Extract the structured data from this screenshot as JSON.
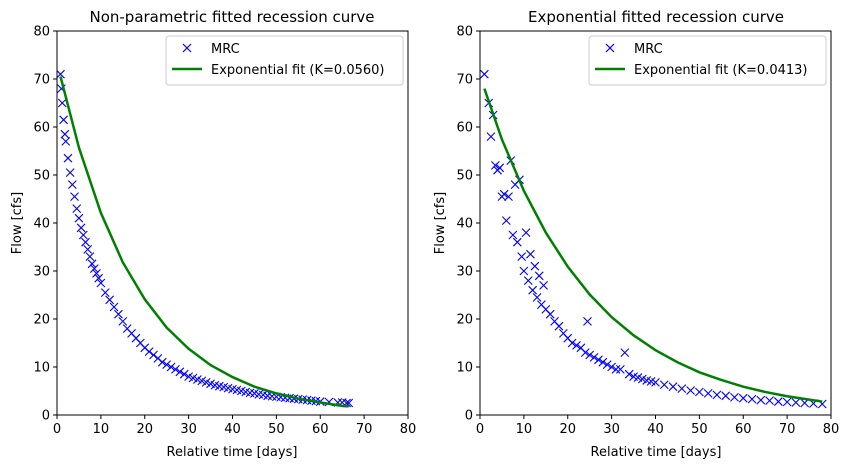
{
  "chart_data": [
    {
      "type": "scatter",
      "title": "Non-parametric fitted recession curve",
      "xlabel": "Relative time [days]",
      "ylabel": "Flow [cfs]",
      "xlim": [
        0,
        80
      ],
      "ylim": [
        0,
        80
      ],
      "xticks": [
        0,
        10,
        20,
        30,
        40,
        50,
        60,
        70,
        80
      ],
      "yticks": [
        0,
        10,
        20,
        30,
        40,
        50,
        60,
        70,
        80
      ],
      "legend_position": "top-right",
      "series": [
        {
          "name": "MRC",
          "kind": "scatter",
          "marker": "x",
          "color": "#0000ff",
          "x": [
            0.8,
            1.0,
            1.2,
            1.5,
            1.8,
            2.0,
            2.5,
            3.0,
            3.5,
            4.0,
            4.5,
            5.0,
            5.5,
            6.0,
            6.5,
            7.0,
            7.5,
            8.0,
            8.5,
            9.0,
            9.5,
            10.0,
            11.0,
            12.0,
            13.0,
            14.0,
            15.0,
            16.0,
            17.0,
            18.0,
            19.0,
            20.0,
            21.0,
            22.0,
            23.0,
            24.0,
            25.0,
            26.0,
            27.0,
            28.0,
            29.0,
            30.0,
            31.0,
            32.0,
            33.0,
            34.0,
            35.0,
            36.0,
            37.0,
            38.0,
            39.0,
            40.0,
            41.0,
            42.0,
            43.0,
            44.0,
            45.0,
            46.0,
            47.0,
            48.0,
            49.0,
            50.0,
            51.0,
            52.0,
            53.0,
            54.0,
            55.0,
            56.0,
            57.0,
            58.0,
            59.0,
            60.0,
            62.0,
            64.0,
            65.0,
            66.0,
            66.5
          ],
          "y": [
            71.0,
            68.0,
            65.0,
            61.5,
            58.5,
            57.0,
            53.5,
            50.5,
            48.0,
            45.5,
            43.0,
            41.0,
            39.0,
            37.5,
            36.0,
            34.5,
            33.0,
            31.5,
            30.5,
            29.5,
            28.5,
            27.5,
            25.5,
            24.0,
            22.5,
            21.0,
            19.5,
            18.0,
            17.0,
            16.0,
            15.0,
            14.0,
            13.2,
            12.5,
            11.8,
            11.0,
            10.5,
            10.0,
            9.5,
            9.0,
            8.5,
            8.0,
            7.7,
            7.4,
            7.1,
            6.8,
            6.5,
            6.2,
            6.0,
            5.8,
            5.6,
            5.4,
            5.2,
            5.0,
            4.8,
            4.6,
            4.5,
            4.3,
            4.2,
            4.0,
            3.9,
            3.8,
            3.7,
            3.6,
            3.5,
            3.4,
            3.3,
            3.2,
            3.1,
            3.0,
            2.9,
            2.8,
            2.7,
            2.6,
            2.6,
            2.5,
            2.5
          ]
        },
        {
          "name": "Exponential fit (K=0.0560)",
          "kind": "line",
          "color": "#008000",
          "x": [
            0.8,
            5,
            10,
            15,
            20,
            25,
            30,
            35,
            40,
            45,
            50,
            55,
            60,
            65,
            66.5
          ],
          "y": [
            70.5,
            55.7,
            42.1,
            31.8,
            24.1,
            18.2,
            13.8,
            10.4,
            7.9,
            5.9,
            4.5,
            3.4,
            2.6,
            1.9,
            1.8
          ]
        }
      ]
    },
    {
      "type": "scatter",
      "title": "Exponential fitted recession curve",
      "xlabel": "Relative time [days]",
      "ylabel": "Flow [cfs]",
      "xlim": [
        0,
        80
      ],
      "ylim": [
        0,
        80
      ],
      "xticks": [
        0,
        10,
        20,
        30,
        40,
        50,
        60,
        70,
        80
      ],
      "yticks": [
        0,
        10,
        20,
        30,
        40,
        50,
        60,
        70,
        80
      ],
      "legend_position": "top-right",
      "series": [
        {
          "name": "MRC",
          "kind": "scatter",
          "marker": "x",
          "color": "#0000ff",
          "x": [
            1.0,
            2.0,
            2.5,
            3.0,
            3.5,
            4.0,
            4.5,
            5.0,
            5.5,
            6.0,
            6.5,
            7.0,
            7.5,
            8.0,
            8.5,
            9.0,
            9.5,
            10.0,
            10.5,
            11.0,
            11.5,
            12.0,
            12.5,
            13.0,
            13.5,
            14.0,
            14.5,
            15.0,
            16.0,
            17.0,
            18.0,
            19.0,
            20.0,
            21.0,
            22.0,
            23.0,
            24.0,
            24.5,
            25.0,
            26.0,
            27.0,
            28.0,
            29.0,
            30.0,
            31.0,
            32.0,
            33.0,
            34.0,
            35.0,
            36.0,
            37.0,
            38.0,
            39.0,
            40.0,
            42.0,
            44.0,
            46.0,
            48.0,
            50.0,
            52.0,
            54.0,
            56.0,
            58.0,
            60.0,
            62.0,
            64.0,
            66.0,
            68.0,
            70.0,
            72.0,
            74.0,
            76.0,
            78.0
          ],
          "y": [
            71.0,
            65.0,
            58.0,
            62.5,
            52.0,
            51.0,
            51.5,
            45.5,
            46.0,
            40.5,
            45.5,
            53.0,
            37.5,
            48.0,
            36.0,
            49.0,
            33.0,
            30.0,
            38.0,
            28.0,
            33.5,
            26.0,
            31.0,
            24.5,
            29.0,
            23.0,
            27.0,
            22.0,
            21.0,
            19.5,
            18.5,
            17.0,
            16.0,
            15.0,
            14.5,
            14.0,
            13.0,
            19.5,
            12.5,
            12.0,
            11.5,
            11.0,
            10.5,
            10.0,
            9.5,
            9.5,
            13.0,
            8.5,
            8.0,
            7.8,
            7.5,
            7.2,
            7.0,
            6.8,
            6.3,
            5.9,
            5.5,
            5.1,
            4.8,
            4.5,
            4.2,
            4.0,
            3.7,
            3.5,
            3.3,
            3.1,
            3.0,
            2.8,
            2.7,
            2.6,
            2.5,
            2.4,
            2.3
          ]
        },
        {
          "name": "Exponential fit (K=0.0413)",
          "kind": "line",
          "color": "#008000",
          "x": [
            1.0,
            5,
            10,
            15,
            20,
            25,
            30,
            35,
            40,
            45,
            50,
            55,
            60,
            65,
            70,
            75,
            78
          ],
          "y": [
            68.0,
            57.4,
            46.7,
            38.0,
            30.9,
            25.1,
            20.4,
            16.6,
            13.5,
            11.0,
            8.9,
            7.3,
            5.9,
            4.8,
            3.9,
            3.2,
            2.8
          ]
        }
      ]
    }
  ]
}
